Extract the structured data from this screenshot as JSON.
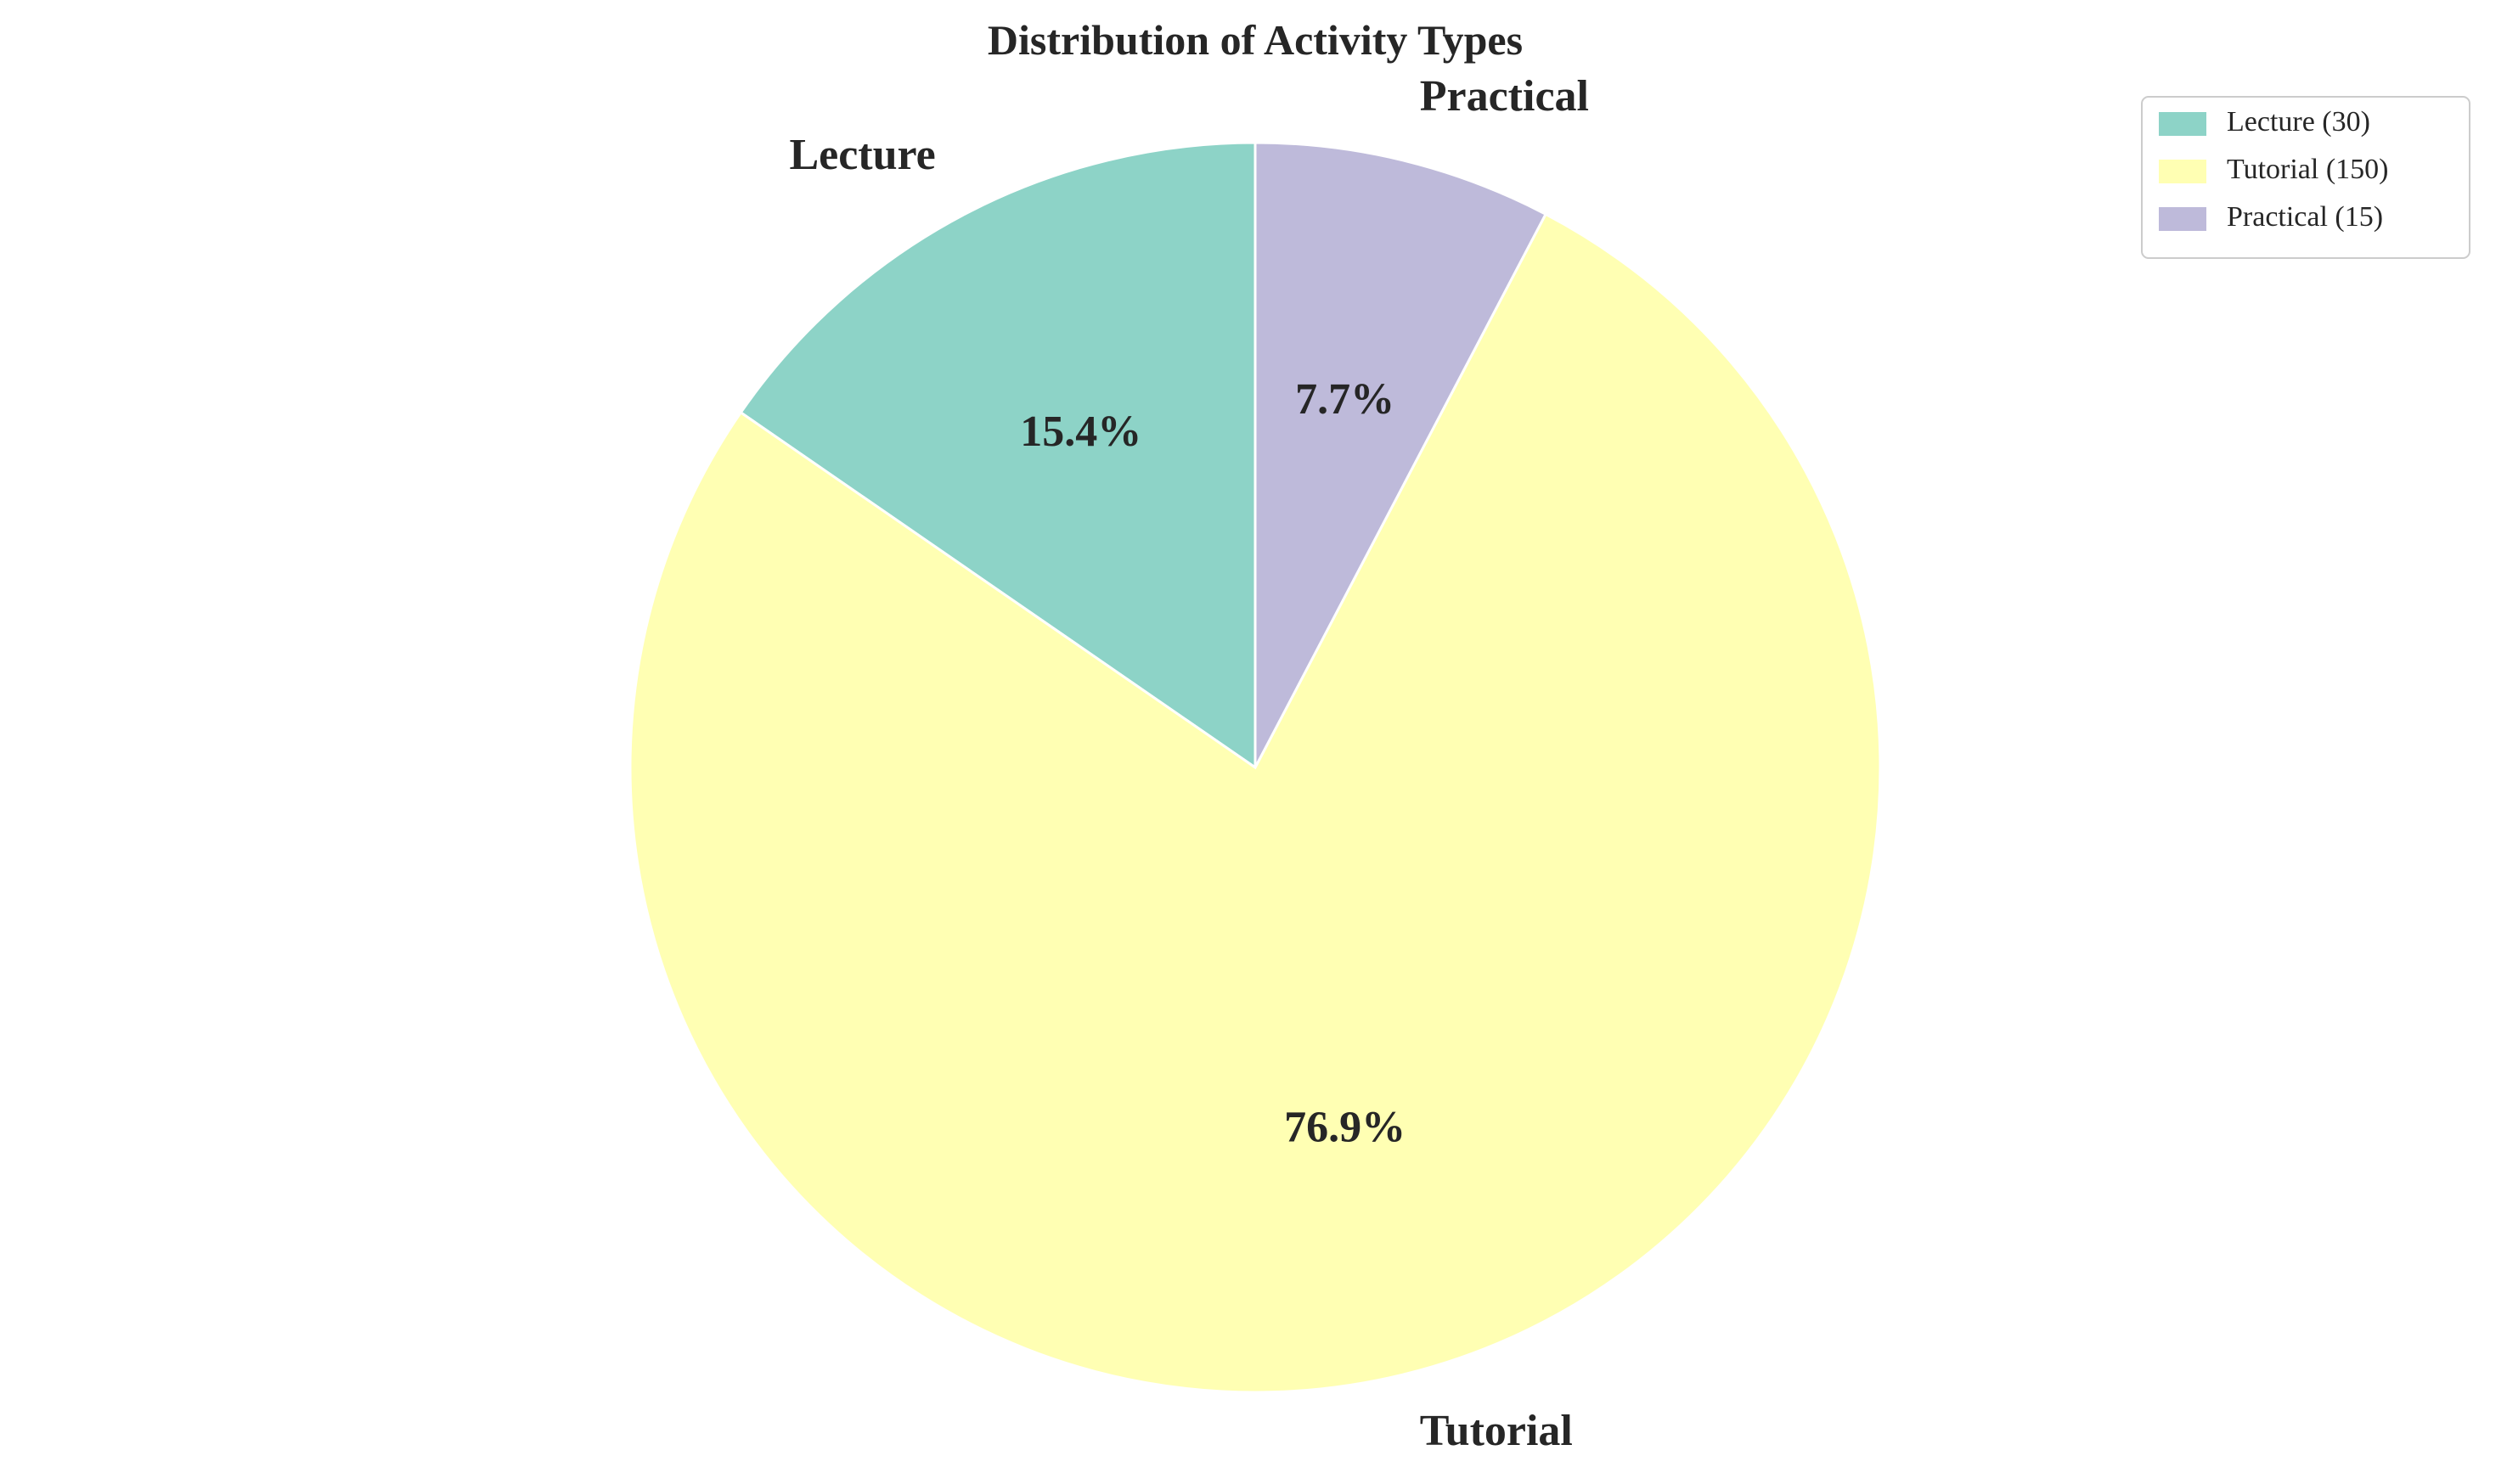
{
  "chart_data": {
    "type": "pie",
    "title": "Distribution of Activity Types",
    "categories": [
      "Lecture",
      "Tutorial",
      "Practical"
    ],
    "values": [
      30,
      150,
      15
    ],
    "percent_labels": [
      "15.4%",
      "76.9%",
      "7.7%"
    ],
    "legend_labels": [
      "Lecture (30)",
      "Tutorial (150)",
      "Practical (15)"
    ],
    "colors": [
      "#8dd3c7",
      "#ffffb3",
      "#bebada"
    ],
    "start_angle_deg": 90,
    "direction": "counterclockwise",
    "legend_position": "top-right",
    "wedge_edge_color": "#ffffff"
  }
}
